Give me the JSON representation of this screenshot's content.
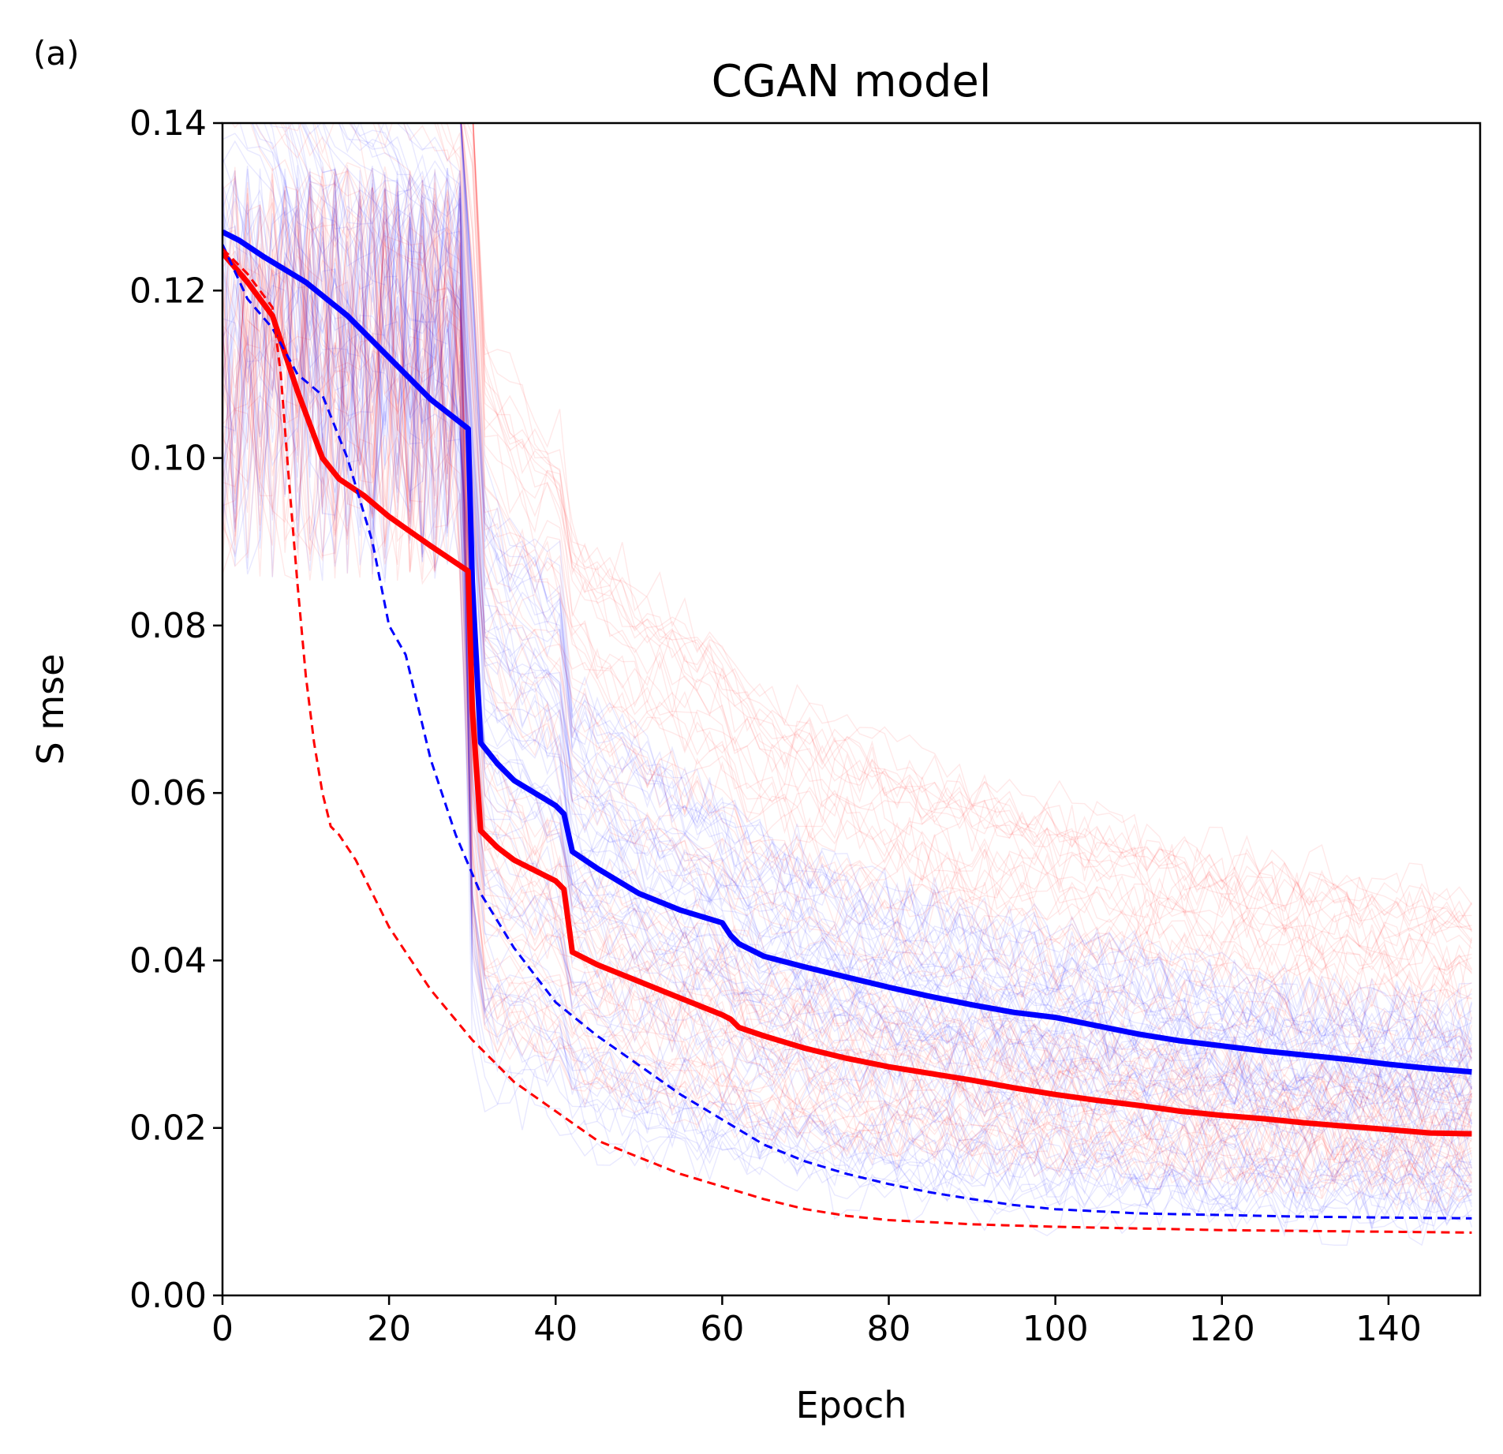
{
  "panel_label": "(a)",
  "chart_data": {
    "type": "line",
    "title": "CGAN model",
    "xlabel": "Epoch",
    "ylabel": "S mse",
    "xlim": [
      0,
      151
    ],
    "ylim": [
      0,
      0.14
    ],
    "xticks": [
      0,
      20,
      40,
      60,
      80,
      100,
      120,
      140
    ],
    "yticks": [
      0.0,
      0.02,
      0.04,
      0.06,
      0.08,
      0.1,
      0.12,
      0.14
    ],
    "xtick_labels": [
      "0",
      "20",
      "40",
      "60",
      "80",
      "100",
      "120",
      "140"
    ],
    "ytick_labels": [
      "0.00",
      "0.02",
      "0.04",
      "0.06",
      "0.08",
      "0.10",
      "0.12",
      "0.14"
    ],
    "colors": {
      "blue": "#0000ff",
      "red": "#ff0000"
    },
    "series": [
      {
        "name": "blue mean",
        "color": "#0000ff",
        "style": "solid",
        "x": [
          0,
          2,
          5,
          10,
          15,
          20,
          25,
          29.5,
          30,
          31,
          33,
          35,
          40,
          41,
          42,
          45,
          50,
          55,
          60,
          61,
          62,
          65,
          70,
          75,
          80,
          85,
          90,
          95,
          100,
          105,
          110,
          115,
          120,
          125,
          130,
          135,
          140,
          145,
          150
        ],
        "y": [
          0.127,
          0.126,
          0.124,
          0.121,
          0.117,
          0.112,
          0.107,
          0.1035,
          0.085,
          0.066,
          0.0635,
          0.0615,
          0.0585,
          0.0575,
          0.053,
          0.051,
          0.048,
          0.046,
          0.0445,
          0.043,
          0.042,
          0.0405,
          0.0392,
          0.038,
          0.0368,
          0.0357,
          0.0347,
          0.0338,
          0.0332,
          0.0322,
          0.0312,
          0.0304,
          0.0298,
          0.0292,
          0.0287,
          0.0282,
          0.0276,
          0.0271,
          0.0267
        ]
      },
      {
        "name": "red mean",
        "color": "#ff0000",
        "style": "solid",
        "x": [
          0,
          3,
          6,
          9,
          12,
          14,
          17,
          20,
          25,
          29.5,
          30,
          31,
          33,
          35,
          40,
          41,
          42,
          45,
          50,
          55,
          60,
          61,
          62,
          65,
          70,
          75,
          80,
          85,
          90,
          95,
          100,
          105,
          110,
          115,
          120,
          125,
          130,
          135,
          140,
          145,
          150
        ],
        "y": [
          0.1245,
          0.121,
          0.117,
          0.108,
          0.1,
          0.0975,
          0.0955,
          0.093,
          0.0895,
          0.0865,
          0.07,
          0.0555,
          0.0535,
          0.052,
          0.0495,
          0.0485,
          0.041,
          0.0395,
          0.0375,
          0.0355,
          0.0335,
          0.033,
          0.032,
          0.031,
          0.0295,
          0.0283,
          0.0273,
          0.0265,
          0.0257,
          0.0248,
          0.024,
          0.0233,
          0.0227,
          0.022,
          0.0215,
          0.0211,
          0.0206,
          0.0202,
          0.0198,
          0.0194,
          0.0193
        ]
      },
      {
        "name": "blue median",
        "color": "#0000ff",
        "style": "dashed",
        "x": [
          0,
          3,
          6,
          9,
          12,
          15,
          18,
          20,
          22,
          25,
          28,
          31,
          35,
          40,
          45,
          50,
          55,
          60,
          65,
          70,
          75,
          80,
          85,
          90,
          95,
          100,
          110,
          120,
          130,
          140,
          150
        ],
        "y": [
          0.1255,
          0.119,
          0.1155,
          0.11,
          0.1075,
          0.1,
          0.09,
          0.08,
          0.0765,
          0.064,
          0.055,
          0.048,
          0.0415,
          0.035,
          0.031,
          0.0275,
          0.024,
          0.021,
          0.018,
          0.016,
          0.0145,
          0.0133,
          0.0123,
          0.0115,
          0.0108,
          0.0103,
          0.0098,
          0.0096,
          0.0094,
          0.0093,
          0.0092
        ]
      },
      {
        "name": "red median",
        "color": "#ff0000",
        "style": "dashed",
        "x": [
          0,
          3,
          6,
          7,
          8,
          9,
          10,
          11,
          12,
          13,
          14,
          16,
          18,
          20,
          25,
          30,
          35,
          40,
          45,
          50,
          55,
          60,
          65,
          70,
          75,
          80,
          90,
          100,
          110,
          120,
          130,
          140,
          150
        ],
        "y": [
          0.125,
          0.122,
          0.118,
          0.11,
          0.097,
          0.085,
          0.074,
          0.066,
          0.06,
          0.056,
          0.055,
          0.052,
          0.048,
          0.044,
          0.0365,
          0.0305,
          0.0255,
          0.022,
          0.0185,
          0.0165,
          0.0145,
          0.013,
          0.0115,
          0.0103,
          0.0095,
          0.009,
          0.0085,
          0.0082,
          0.008,
          0.0078,
          0.0077,
          0.0076,
          0.0075
        ]
      }
    ]
  }
}
